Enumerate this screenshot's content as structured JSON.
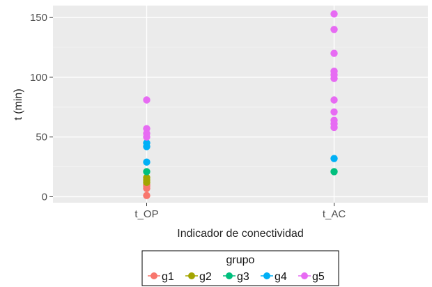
{
  "chart_data": {
    "type": "scatter",
    "xlabel": "Indicador de conectividad",
    "ylabel": "t (min)",
    "categories": [
      "t_OP",
      "t_AC"
    ],
    "ylim": [
      -5,
      160
    ],
    "yticks": [
      0,
      50,
      100,
      150
    ],
    "grid": true,
    "legend": {
      "title": "grupo",
      "placement": "bottom",
      "entries": [
        "g1",
        "g2",
        "g3",
        "g4",
        "g5"
      ]
    },
    "series": [
      {
        "name": "g1",
        "color": "#F8766D",
        "points": [
          {
            "x": "t_OP",
            "y": 1
          },
          {
            "x": "t_OP",
            "y": 7
          },
          {
            "x": "t_OP",
            "y": 9
          },
          {
            "x": "t_OP",
            "y": 10
          }
        ]
      },
      {
        "name": "g2",
        "color": "#A3A500",
        "points": [
          {
            "x": "t_OP",
            "y": 12
          },
          {
            "x": "t_OP",
            "y": 14
          },
          {
            "x": "t_OP",
            "y": 16
          }
        ]
      },
      {
        "name": "g3",
        "color": "#00BF7D",
        "points": [
          {
            "x": "t_OP",
            "y": 21
          },
          {
            "x": "t_AC",
            "y": 21
          }
        ]
      },
      {
        "name": "g4",
        "color": "#00B0F6",
        "points": [
          {
            "x": "t_OP",
            "y": 29
          },
          {
            "x": "t_OP",
            "y": 42
          },
          {
            "x": "t_OP",
            "y": 45
          },
          {
            "x": "t_AC",
            "y": 32
          }
        ]
      },
      {
        "name": "g5",
        "color": "#E76BF3",
        "points": [
          {
            "x": "t_OP",
            "y": 50
          },
          {
            "x": "t_OP",
            "y": 53
          },
          {
            "x": "t_OP",
            "y": 57
          },
          {
            "x": "t_OP",
            "y": 81
          },
          {
            "x": "t_AC",
            "y": 58
          },
          {
            "x": "t_AC",
            "y": 61
          },
          {
            "x": "t_AC",
            "y": 64
          },
          {
            "x": "t_AC",
            "y": 71
          },
          {
            "x": "t_AC",
            "y": 81
          },
          {
            "x": "t_AC",
            "y": 99
          },
          {
            "x": "t_AC",
            "y": 102
          },
          {
            "x": "t_AC",
            "y": 105
          },
          {
            "x": "t_AC",
            "y": 120
          },
          {
            "x": "t_AC",
            "y": 140
          },
          {
            "x": "t_AC",
            "y": 153
          }
        ]
      }
    ]
  }
}
